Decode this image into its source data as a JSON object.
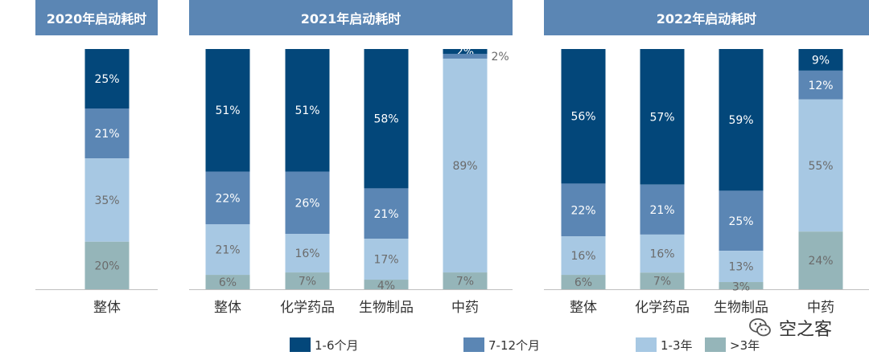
{
  "colors": {
    "s1": "#03477a",
    "s2": "#5b86b4",
    "s3": "#a7c8e3",
    "s4": "#95b5b9",
    "header_bg": "#5b86b4",
    "label_dark": "#ffffff",
    "label_light": "#6b6b6b"
  },
  "legend": [
    "1-6个月",
    "7-12个月",
    "1-3年",
    ">3年"
  ],
  "watermark": {
    "text": "空之客",
    "icon": "wechat-icon"
  },
  "chart_data": [
    {
      "type": "bar",
      "stacked": true,
      "title": "2020年启动耗时",
      "categories": [
        "整体"
      ],
      "ylim": [
        0,
        100
      ],
      "series": [
        {
          "name": "1-6个月",
          "values": [
            25
          ]
        },
        {
          "name": "7-12个月",
          "values": [
            21
          ]
        },
        {
          "name": "1-3年",
          "values": [
            35
          ]
        },
        {
          "name": ">3年",
          "values": [
            20
          ]
        }
      ]
    },
    {
      "type": "bar",
      "stacked": true,
      "title": "2021年启动耗时",
      "categories": [
        "整体",
        "化学药品",
        "生物制品",
        "中药"
      ],
      "ylim": [
        0,
        100
      ],
      "series": [
        {
          "name": "1-6个月",
          "values": [
            51,
            51,
            58,
            2
          ]
        },
        {
          "name": "7-12个月",
          "values": [
            22,
            26,
            21,
            2
          ]
        },
        {
          "name": "1-3年",
          "values": [
            21,
            16,
            17,
            89
          ]
        },
        {
          "name": ">3年",
          "values": [
            6,
            7,
            4,
            7
          ]
        }
      ]
    },
    {
      "type": "bar",
      "stacked": true,
      "title": "2022年启动耗时",
      "categories": [
        "整体",
        "化学药品",
        "生物制品",
        "中药"
      ],
      "ylim": [
        0,
        100
      ],
      "series": [
        {
          "name": "1-6个月",
          "values": [
            56,
            57,
            59,
            9
          ]
        },
        {
          "name": "7-12个月",
          "values": [
            22,
            21,
            25,
            12
          ]
        },
        {
          "name": "1-3年",
          "values": [
            16,
            16,
            13,
            55
          ]
        },
        {
          "name": ">3年",
          "values": [
            6,
            7,
            3,
            24
          ]
        }
      ]
    }
  ]
}
